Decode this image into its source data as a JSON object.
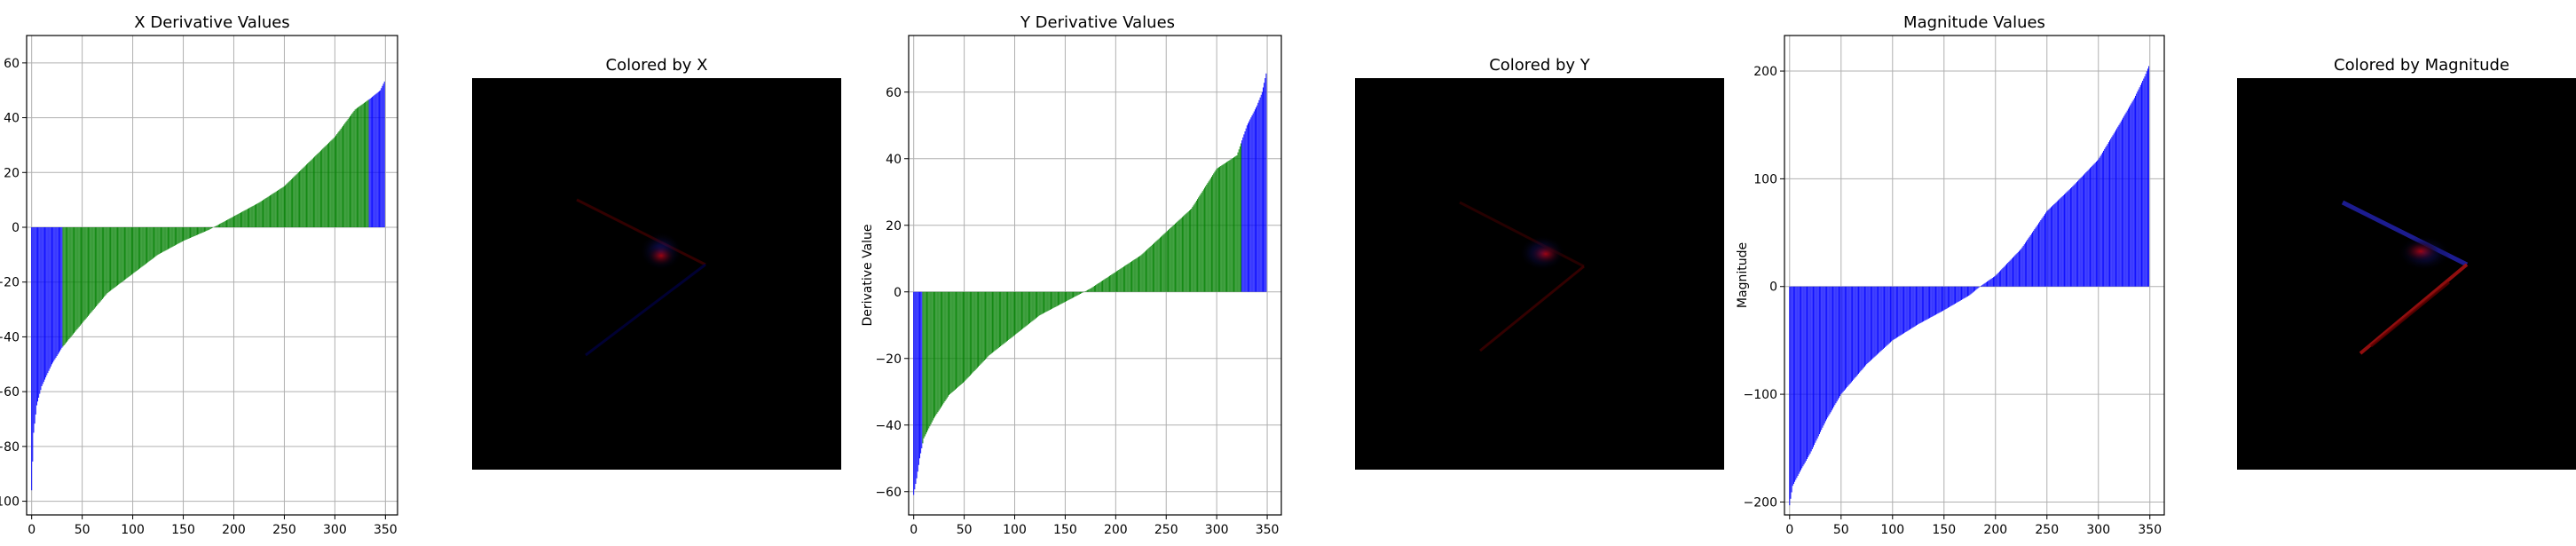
{
  "chart_data": [
    {
      "type": "bar",
      "title": "X Derivative Values",
      "xlabel": "",
      "ylabel": "",
      "xlim": [
        -5,
        362
      ],
      "ylim": [
        -105,
        70
      ],
      "xticks": [
        0,
        50,
        100,
        150,
        200,
        250,
        300,
        350
      ],
      "yticks": [
        -100,
        -80,
        -60,
        -40,
        -20,
        0,
        20,
        40,
        60
      ],
      "grid": true,
      "n_points": 350,
      "curve_anchors": [
        [
          0,
          -96
        ],
        [
          2,
          -75
        ],
        [
          5,
          -65
        ],
        [
          10,
          -58
        ],
        [
          20,
          -50
        ],
        [
          30,
          -44
        ],
        [
          50,
          -35
        ],
        [
          75,
          -24
        ],
        [
          100,
          -17
        ],
        [
          125,
          -10
        ],
        [
          150,
          -5
        ],
        [
          175,
          -1
        ],
        [
          200,
          4
        ],
        [
          225,
          9
        ],
        [
          250,
          15
        ],
        [
          275,
          24
        ],
        [
          300,
          33
        ],
        [
          320,
          43
        ],
        [
          335,
          47
        ],
        [
          345,
          50
        ],
        [
          350,
          54
        ]
      ],
      "highlight_color": "#0000ff",
      "base_color": "#008000",
      "highlight_ranges": [
        [
          0,
          30
        ],
        [
          334,
          350
        ]
      ]
    },
    {
      "type": "bar",
      "title": "Y Derivative Values",
      "xlabel": "",
      "ylabel": "Derivative Value",
      "xlim": [
        -5,
        364
      ],
      "ylim": [
        -67,
        77
      ],
      "xticks": [
        0,
        50,
        100,
        150,
        200,
        250,
        300,
        350
      ],
      "yticks": [
        -60,
        -40,
        -20,
        0,
        20,
        40,
        60
      ],
      "grid": true,
      "n_points": 350,
      "curve_anchors": [
        [
          0,
          -61
        ],
        [
          3,
          -56
        ],
        [
          6,
          -50
        ],
        [
          10,
          -44
        ],
        [
          20,
          -38
        ],
        [
          35,
          -31
        ],
        [
          50,
          -27
        ],
        [
          75,
          -19
        ],
        [
          100,
          -13
        ],
        [
          125,
          -7
        ],
        [
          150,
          -3
        ],
        [
          175,
          1
        ],
        [
          200,
          6
        ],
        [
          225,
          11
        ],
        [
          250,
          18
        ],
        [
          275,
          25
        ],
        [
          300,
          37
        ],
        [
          320,
          41
        ],
        [
          330,
          50
        ],
        [
          340,
          56
        ],
        [
          345,
          60
        ],
        [
          350,
          67
        ]
      ],
      "highlight_color": "#0000ff",
      "base_color": "#008000",
      "highlight_ranges": [
        [
          0,
          8
        ],
        [
          325,
          350
        ]
      ]
    },
    {
      "type": "bar",
      "title": "Magnitude Values",
      "xlabel": "",
      "ylabel": "Magnitude",
      "xlim": [
        -5,
        364
      ],
      "ylim": [
        -212,
        233
      ],
      "xticks": [
        0,
        50,
        100,
        150,
        200,
        250,
        300,
        350
      ],
      "yticks": [
        -200,
        -100,
        0,
        100,
        200
      ],
      "grid": true,
      "n_points": 350,
      "curve_anchors": [
        [
          0,
          -203
        ],
        [
          3,
          -185
        ],
        [
          10,
          -172
        ],
        [
          20,
          -155
        ],
        [
          35,
          -125
        ],
        [
          50,
          -100
        ],
        [
          75,
          -72
        ],
        [
          100,
          -50
        ],
        [
          125,
          -35
        ],
        [
          150,
          -22
        ],
        [
          175,
          -8
        ],
        [
          185,
          0
        ],
        [
          200,
          10
        ],
        [
          225,
          35
        ],
        [
          250,
          70
        ],
        [
          275,
          93
        ],
        [
          300,
          118
        ],
        [
          320,
          150
        ],
        [
          335,
          175
        ],
        [
          345,
          195
        ],
        [
          350,
          207
        ]
      ],
      "highlight_color": "#0000ff",
      "base_color": "#0000ff",
      "highlight_ranges": []
    }
  ],
  "images": [
    {
      "title": "Colored by X"
    },
    {
      "title": "Colored by Y"
    },
    {
      "title": "Colored by Magnitude"
    }
  ]
}
